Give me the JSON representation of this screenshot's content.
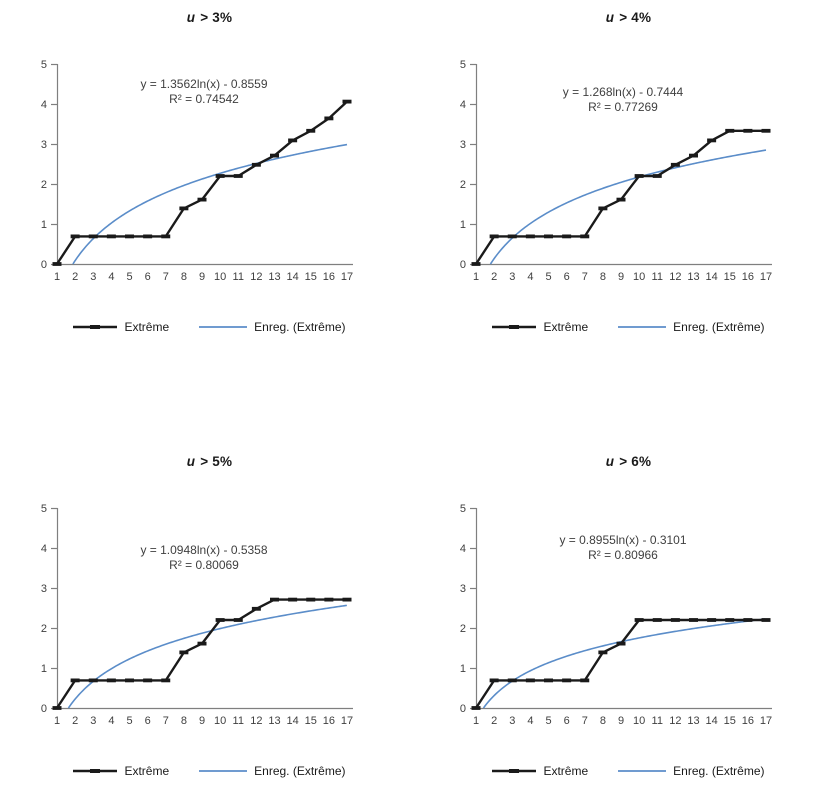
{
  "page": {
    "background": "#ffffff"
  },
  "colors": {
    "series": "#1a1a1a",
    "trendline": "#5b8dc9",
    "axis": "#7f7f7f",
    "tick_text": "#3f3f3f",
    "annotation_text": "#3f3f3f"
  },
  "chart_data": [
    {
      "type": "line",
      "title": {
        "var": "u",
        "rest": "> 3%"
      },
      "x": [
        1,
        2,
        3,
        4,
        5,
        6,
        7,
        8,
        9,
        10,
        11,
        12,
        13,
        14,
        15,
        16,
        17
      ],
      "xticks": [
        "1",
        "2",
        "3",
        "4",
        "5",
        "6",
        "7",
        "8",
        "9",
        "10",
        "11",
        "12",
        "13",
        "14",
        "15",
        "16",
        "17"
      ],
      "yticks": [
        "0",
        "1",
        "2",
        "3",
        "4",
        "5"
      ],
      "ylim": [
        0,
        5
      ],
      "series": [
        {
          "name": "Extrême",
          "values": [
            0,
            0.69,
            0.69,
            0.69,
            0.69,
            0.69,
            0.69,
            1.39,
            1.61,
            2.2,
            2.2,
            2.48,
            2.71,
            3.09,
            3.33,
            3.64,
            4.06
          ]
        },
        {
          "name": "Enreg. (Extrême)",
          "kind": "log-trendline",
          "a": 1.3562,
          "b": -0.8559
        }
      ],
      "annotation": [
        "y = 1.3562ln(x) - 0.8559",
        "R² = 0.74542"
      ],
      "annotation_y": 4.4,
      "legend": [
        "Extrême",
        "Enreg. (Extrême)"
      ]
    },
    {
      "type": "line",
      "title": {
        "var": "u",
        "rest": "> 4%"
      },
      "x": [
        1,
        2,
        3,
        4,
        5,
        6,
        7,
        8,
        9,
        10,
        11,
        12,
        13,
        14,
        15,
        16,
        17
      ],
      "xticks": [
        "1",
        "2",
        "3",
        "4",
        "5",
        "6",
        "7",
        "8",
        "9",
        "10",
        "11",
        "12",
        "13",
        "14",
        "15",
        "16",
        "17"
      ],
      "yticks": [
        "0",
        "1",
        "2",
        "3",
        "4",
        "5"
      ],
      "ylim": [
        0,
        5
      ],
      "series": [
        {
          "name": "Extrême",
          "values": [
            0,
            0.69,
            0.69,
            0.69,
            0.69,
            0.69,
            0.69,
            1.39,
            1.61,
            2.2,
            2.2,
            2.48,
            2.71,
            3.09,
            3.33,
            3.33,
            3.33
          ]
        },
        {
          "name": "Enreg. (Extrême)",
          "kind": "log-trendline",
          "a": 1.268,
          "b": -0.7444
        }
      ],
      "annotation": [
        "y = 1.268ln(x) - 0.7444",
        "R² = 0.77269"
      ],
      "annotation_y": 4.2,
      "legend": [
        "Extrême",
        "Enreg. (Extrême)"
      ]
    },
    {
      "type": "line",
      "title": {
        "var": "u",
        "rest": "> 5%"
      },
      "x": [
        1,
        2,
        3,
        4,
        5,
        6,
        7,
        8,
        9,
        10,
        11,
        12,
        13,
        14,
        15,
        16,
        17
      ],
      "xticks": [
        "1",
        "2",
        "3",
        "4",
        "5",
        "6",
        "7",
        "8",
        "9",
        "10",
        "11",
        "12",
        "13",
        "14",
        "15",
        "16",
        "17"
      ],
      "yticks": [
        "0",
        "1",
        "2",
        "3",
        "4",
        "5"
      ],
      "ylim": [
        0,
        5
      ],
      "series": [
        {
          "name": "Extrême",
          "values": [
            0,
            0.69,
            0.69,
            0.69,
            0.69,
            0.69,
            0.69,
            1.39,
            1.61,
            2.2,
            2.2,
            2.48,
            2.71,
            2.71,
            2.71,
            2.71,
            2.71
          ]
        },
        {
          "name": "Enreg. (Extrême)",
          "kind": "log-trendline",
          "a": 1.0948,
          "b": -0.5358
        }
      ],
      "annotation": [
        "y = 1.0948ln(x) - 0.5358",
        "R² = 0.80069"
      ],
      "annotation_y": 3.85,
      "legend": [
        "Extrême",
        "Enreg. (Extrême)"
      ]
    },
    {
      "type": "line",
      "title": {
        "var": "u",
        "rest": "> 6%"
      },
      "x": [
        1,
        2,
        3,
        4,
        5,
        6,
        7,
        8,
        9,
        10,
        11,
        12,
        13,
        14,
        15,
        16,
        17
      ],
      "xticks": [
        "1",
        "2",
        "3",
        "4",
        "5",
        "6",
        "7",
        "8",
        "9",
        "10",
        "11",
        "12",
        "13",
        "14",
        "15",
        "16",
        "17"
      ],
      "yticks": [
        "0",
        "1",
        "2",
        "3",
        "4",
        "5"
      ],
      "ylim": [
        0,
        5
      ],
      "series": [
        {
          "name": "Extrême",
          "values": [
            0,
            0.69,
            0.69,
            0.69,
            0.69,
            0.69,
            0.69,
            1.39,
            1.61,
            2.2,
            2.2,
            2.2,
            2.2,
            2.2,
            2.2,
            2.2,
            2.2
          ]
        },
        {
          "name": "Enreg. (Extrême)",
          "kind": "log-trendline",
          "a": 0.8955,
          "b": -0.3101
        }
      ],
      "annotation": [
        "y = 0.8955ln(x) - 0.3101",
        "R² = 0.80966"
      ],
      "annotation_y": 4.1,
      "legend": [
        "Extrême",
        "Enreg. (Extrême)"
      ]
    }
  ]
}
